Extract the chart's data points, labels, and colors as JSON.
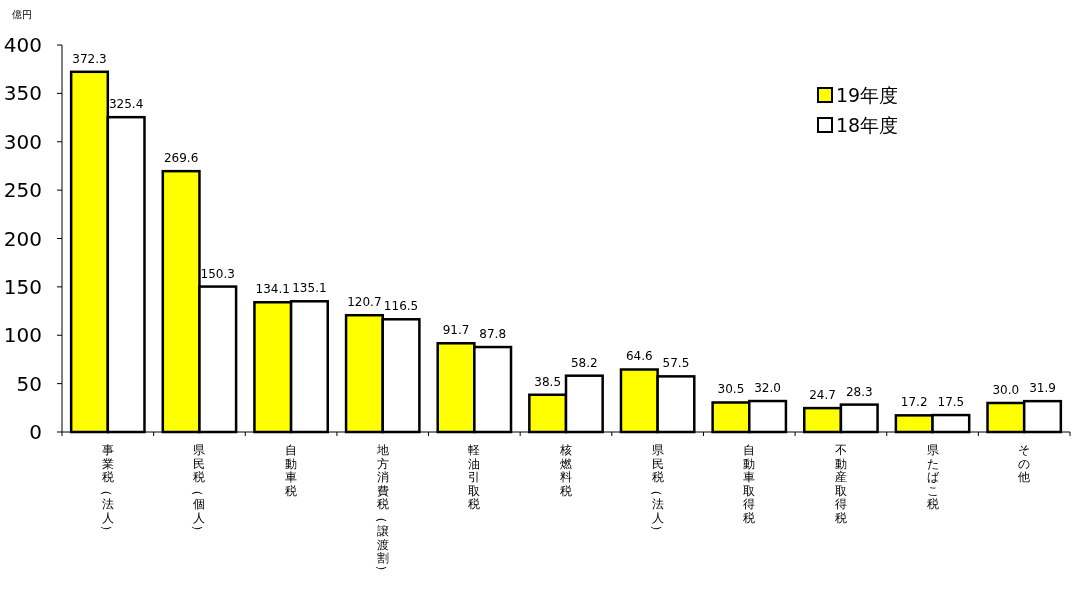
{
  "chart_data": {
    "type": "bar",
    "ylabel": "億円",
    "categories": [
      "事業税（法人）",
      "県民税（個人）",
      "自動車税",
      "地方消費税（譲渡割）",
      "軽油引取税",
      "核燃料税",
      "県民税（法人）",
      "自動車取得税",
      "不動産取得税",
      "県たばこ税",
      "その他"
    ],
    "series": [
      {
        "name": "19年度",
        "color": "#ffff00",
        "values": [
          372.3,
          269.6,
          134.1,
          120.7,
          91.7,
          38.5,
          64.6,
          30.5,
          24.7,
          17.2,
          30.0
        ],
        "value_labels": [
          "372.3",
          "269.6",
          "134.1",
          "120.7",
          "91.7",
          "38.5",
          "64.6",
          "30.5",
          "24.7",
          "17.2",
          "30.0"
        ]
      },
      {
        "name": "18年度",
        "color": "#ffffff",
        "values": [
          325.4,
          150.3,
          135.1,
          116.5,
          87.8,
          58.2,
          57.5,
          32.0,
          28.3,
          17.5,
          31.9
        ],
        "value_labels": [
          "325.4",
          "150.3",
          "135.1",
          "116.5",
          "87.8",
          "58.2",
          "57.5",
          "32.0",
          "28.3",
          "17.5",
          "31.9"
        ]
      }
    ],
    "ylim": [
      0,
      400
    ],
    "yticks": [
      0,
      50,
      100,
      150,
      200,
      250,
      300,
      350,
      400
    ],
    "legend": "top right"
  }
}
